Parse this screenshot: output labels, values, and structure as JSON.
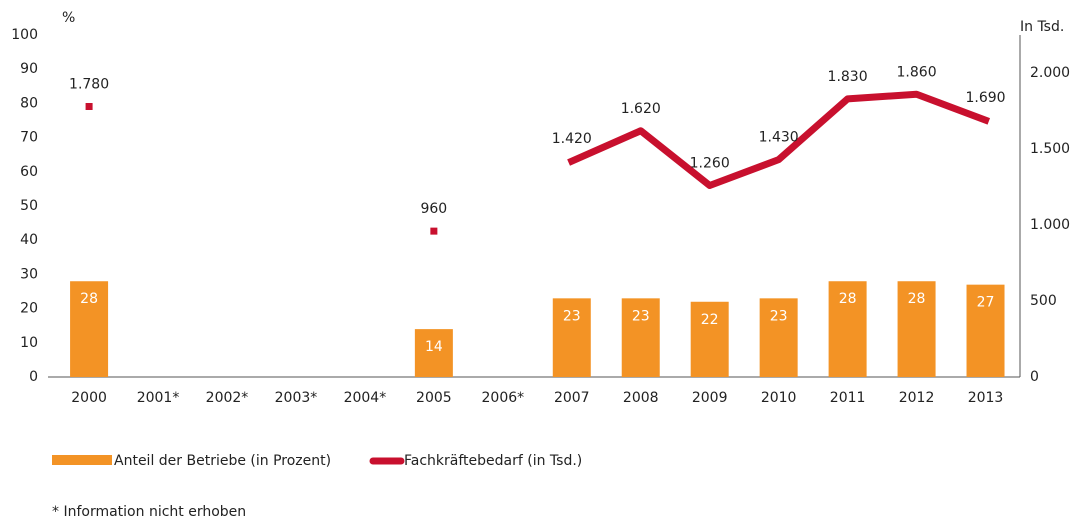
{
  "chart_data": {
    "type": "bar+line",
    "y_label": "%",
    "y2_label": "In Tsd.",
    "categories": [
      "2000",
      "2001*",
      "2002*",
      "2003*",
      "2004*",
      "2005",
      "2006*",
      "2007",
      "2008",
      "2009",
      "2010",
      "2011",
      "2012",
      "2013"
    ],
    "series": [
      {
        "name": "Anteil der Betriebe (in Prozent)",
        "type": "bar",
        "color": "#f39325",
        "values": [
          28,
          null,
          null,
          null,
          null,
          14,
          null,
          23,
          23,
          22,
          23,
          28,
          28,
          27
        ]
      },
      {
        "name": "Fachkräftebedarf (in Tsd.)",
        "type": "line",
        "color": "#c8102e",
        "axis": "y2",
        "values": [
          1780,
          null,
          null,
          null,
          null,
          960,
          null,
          1420,
          1620,
          1260,
          1430,
          1830,
          1860,
          1690
        ],
        "value_labels": [
          "1.780",
          null,
          null,
          null,
          null,
          "960",
          null,
          "1.420",
          "1.620",
          "1.260",
          "1.430",
          "1.830",
          "1.860",
          "1.690"
        ]
      }
    ],
    "ylim": [
      0,
      100
    ],
    "yticks": [
      0,
      10,
      20,
      30,
      40,
      50,
      60,
      70,
      80,
      90,
      100
    ],
    "y2lim": [
      0,
      2250
    ],
    "y2ticks": [
      0,
      500,
      {
        "value": 1000,
        "label": "1.000"
      },
      {
        "value": 1500,
        "label": "1.500"
      },
      {
        "value": 2000,
        "label": "2.000"
      }
    ],
    "footnote": "* Information nicht erhoben"
  }
}
